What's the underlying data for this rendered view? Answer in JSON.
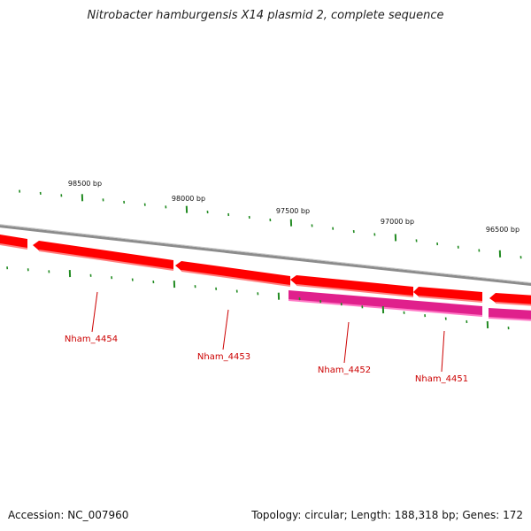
{
  "title": "Nitrobacter hamburgensis X14 plasmid 2, complete sequence",
  "footer": {
    "accession": "Accession: NC_007960",
    "topology": "Topology: circular; Length: 188,318 bp; Genes: 172"
  },
  "ruler": {
    "labels": [
      "98500 bp",
      "98000 bp",
      "97500 bp",
      "97000 bp",
      "96500 bp"
    ]
  },
  "genes": [
    {
      "name": "Nham_4454"
    },
    {
      "name": "Nham_4453"
    },
    {
      "name": "Nham_4452"
    },
    {
      "name": "Nham_4451"
    }
  ],
  "colors": {
    "backbone": "#8c8c8c",
    "gene_forward": "#ff0000",
    "gene_forward_light": "#ff8080",
    "gene_cds": "#e0208c",
    "gene_cds_light": "#ff7ac6",
    "ticks": "#228b22",
    "label": "#cc0000"
  }
}
